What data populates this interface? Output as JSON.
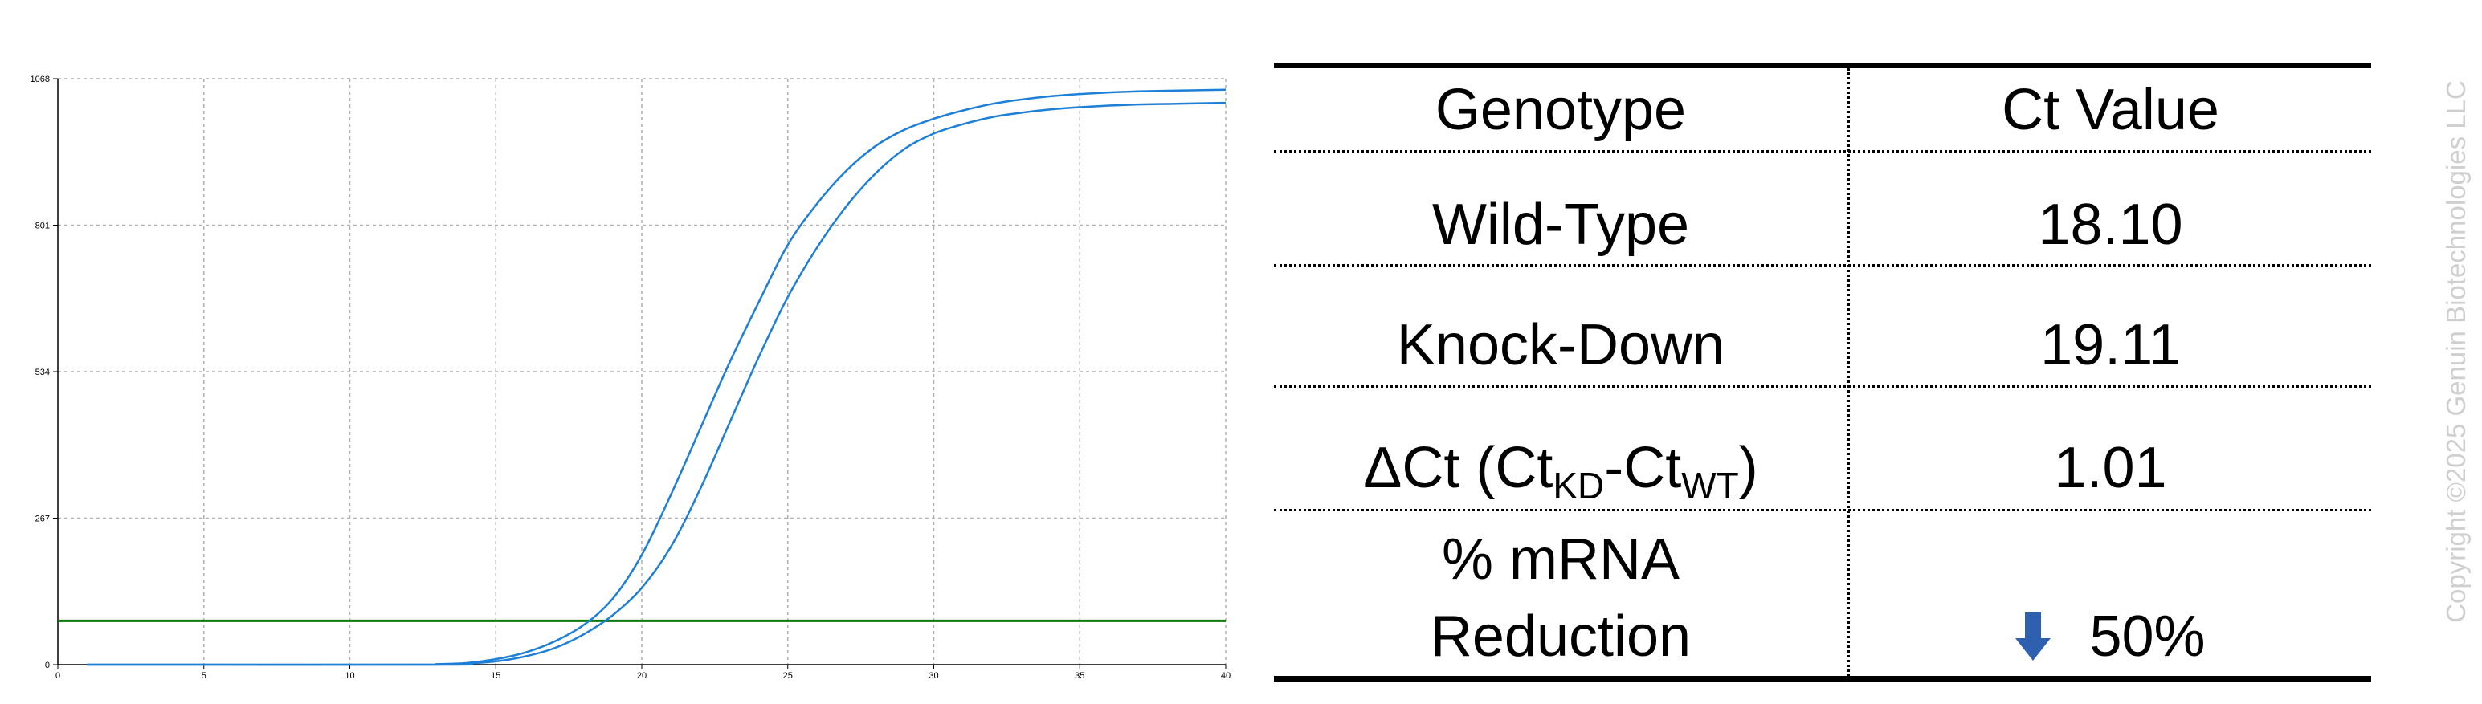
{
  "chart_data": {
    "type": "line",
    "x_ticks": [
      "0",
      "5",
      "10",
      "15",
      "20",
      "25",
      "30",
      "35",
      "40"
    ],
    "y_ticks": [
      "0",
      "267",
      "534",
      "801",
      "1068"
    ],
    "xlim": [
      0,
      40
    ],
    "ylim": [
      0,
      1068
    ],
    "grid": true,
    "threshold": 80,
    "colors": {
      "series": "#1e7fd6",
      "threshold": "#0a7a0a",
      "grid": "#b0b0b0"
    },
    "series": [
      {
        "x": [
          1,
          12,
          13,
          14,
          15,
          16,
          17,
          18,
          19,
          20,
          21,
          22,
          23,
          24,
          25,
          26,
          27,
          28,
          29,
          30,
          31,
          32,
          33,
          34,
          35,
          36,
          37,
          38,
          39,
          40
        ],
        "y": [
          0,
          0,
          1,
          3,
          10,
          22,
          42,
          72,
          120,
          200,
          310,
          430,
          550,
          660,
          765,
          840,
          900,
          945,
          975,
          995,
          1010,
          1022,
          1030,
          1036,
          1040,
          1043,
          1045,
          1046,
          1047,
          1048
        ]
      },
      {
        "x": [
          1,
          13,
          14,
          15,
          16,
          17,
          18,
          19,
          20,
          21,
          22,
          23,
          24,
          25,
          26,
          27,
          28,
          29,
          30,
          31,
          32,
          33,
          34,
          35,
          36,
          37,
          38,
          39,
          40
        ],
        "y": [
          0,
          0,
          2,
          6,
          15,
          30,
          55,
          90,
          140,
          215,
          320,
          440,
          560,
          670,
          760,
          835,
          895,
          940,
          968,
          985,
          998,
          1006,
          1012,
          1016,
          1019,
          1021,
          1022,
          1023,
          1024
        ]
      }
    ]
  },
  "table": {
    "header": {
      "col1": "Genotype",
      "col2": "Ct Value"
    },
    "row_wt": {
      "label": "Wild-Type",
      "value": "18.10"
    },
    "row_kd": {
      "label": "Knock-Down",
      "value": "19.11"
    },
    "row_delta": {
      "prefix": "ΔCt (Ct",
      "sub1": "KD",
      "mid": "-Ct",
      "sub2": "WT",
      "suffix": ")",
      "value": "1.01"
    },
    "row_reduction": {
      "label_line1": "% mRNA",
      "label_line2": "Reduction",
      "value": "50%",
      "arrow_icon": "arrow-down-icon",
      "arrow_color": "#2f5faf"
    }
  },
  "copyright": "Copyright ©2025 Genuin Biotechnologies LLC"
}
